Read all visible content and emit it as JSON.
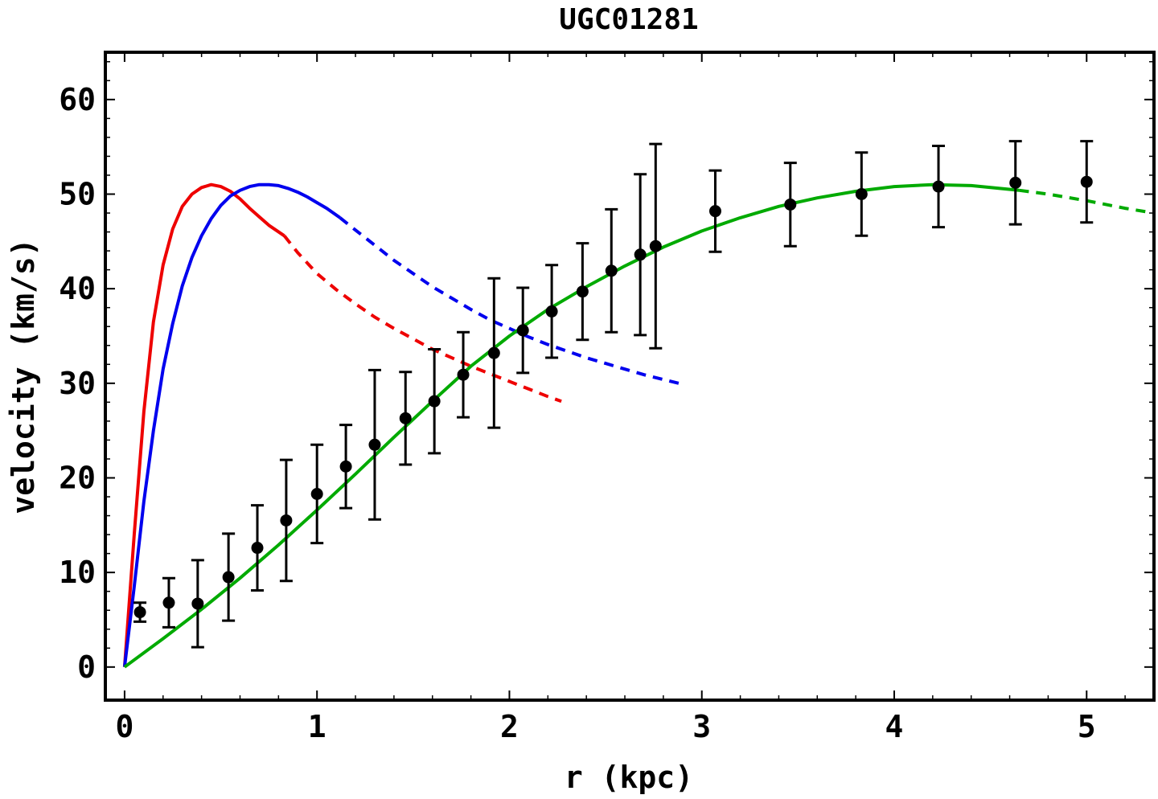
{
  "chart_data": {
    "type": "scatter",
    "title": "UGC01281",
    "xlabel": "r (kpc)",
    "ylabel": "velocity (km/s)",
    "xlim": [
      -0.1,
      5.35
    ],
    "ylim": [
      -3.5,
      65
    ],
    "xticks": [
      "0",
      "1",
      "2",
      "3",
      "4",
      "5"
    ],
    "yticks": [
      "0",
      "10",
      "20",
      "30",
      "40",
      "50",
      "60"
    ],
    "grid": false,
    "observed": {
      "name": "observed rotation curve",
      "color": "#000000",
      "points": [
        {
          "r": 0.08,
          "v": 5.8,
          "err": 1.0
        },
        {
          "r": 0.23,
          "v": 6.8,
          "err": 2.6
        },
        {
          "r": 0.38,
          "v": 6.7,
          "err": 4.6
        },
        {
          "r": 0.54,
          "v": 9.5,
          "err": 4.6
        },
        {
          "r": 0.69,
          "v": 12.6,
          "err": 4.5
        },
        {
          "r": 0.84,
          "v": 15.5,
          "err": 6.4
        },
        {
          "r": 1.0,
          "v": 18.3,
          "err": 5.2
        },
        {
          "r": 1.15,
          "v": 21.2,
          "err": 4.4
        },
        {
          "r": 1.3,
          "v": 23.5,
          "err": 7.9
        },
        {
          "r": 1.46,
          "v": 26.3,
          "err": 4.9
        },
        {
          "r": 1.61,
          "v": 28.1,
          "err": 5.5
        },
        {
          "r": 1.76,
          "v": 30.9,
          "err": 4.5
        },
        {
          "r": 1.92,
          "v": 33.2,
          "err": 7.9
        },
        {
          "r": 2.07,
          "v": 35.6,
          "err": 4.5
        },
        {
          "r": 2.22,
          "v": 37.6,
          "err": 4.9
        },
        {
          "r": 2.38,
          "v": 39.7,
          "err": 5.1
        },
        {
          "r": 2.53,
          "v": 41.9,
          "err": 6.5
        },
        {
          "r": 2.68,
          "v": 43.6,
          "err": 8.5
        },
        {
          "r": 2.76,
          "v": 44.5,
          "err": 10.8
        },
        {
          "r": 3.07,
          "v": 48.2,
          "err": 4.3
        },
        {
          "r": 3.46,
          "v": 48.9,
          "err": 4.4
        },
        {
          "r": 3.83,
          "v": 50.0,
          "err": 4.4
        },
        {
          "r": 4.23,
          "v": 50.8,
          "err": 4.3
        },
        {
          "r": 4.63,
          "v": 51.2,
          "err": 4.4
        },
        {
          "r": 5.0,
          "v": 51.3,
          "err": 4.3
        }
      ]
    },
    "series": [
      {
        "name": "model curve (red)",
        "color": "#ee0000",
        "style": "solid to dashed",
        "r_solid_end": 0.83,
        "r_end": 2.27,
        "points": [
          [
            0.0,
            0.0
          ],
          [
            0.05,
            14.0
          ],
          [
            0.1,
            27.0
          ],
          [
            0.15,
            36.5
          ],
          [
            0.2,
            42.5
          ],
          [
            0.25,
            46.3
          ],
          [
            0.3,
            48.7
          ],
          [
            0.35,
            50.0
          ],
          [
            0.4,
            50.7
          ],
          [
            0.45,
            51.0
          ],
          [
            0.5,
            50.8
          ],
          [
            0.55,
            50.3
          ],
          [
            0.6,
            49.5
          ],
          [
            0.65,
            48.5
          ],
          [
            0.7,
            47.6
          ],
          [
            0.75,
            46.7
          ],
          [
            0.83,
            45.6
          ],
          [
            0.9,
            43.8
          ],
          [
            1.0,
            41.6
          ],
          [
            1.1,
            39.9
          ],
          [
            1.2,
            38.4
          ],
          [
            1.3,
            37.0
          ],
          [
            1.4,
            35.8
          ],
          [
            1.5,
            34.7
          ],
          [
            1.6,
            33.6
          ],
          [
            1.7,
            32.7
          ],
          [
            1.8,
            31.8
          ],
          [
            1.9,
            31.0
          ],
          [
            2.0,
            30.2
          ],
          [
            2.1,
            29.4
          ],
          [
            2.2,
            28.6
          ],
          [
            2.27,
            28.1
          ]
        ]
      },
      {
        "name": "model curve (blue)",
        "color": "#0000ee",
        "style": "solid to dashed",
        "r_solid_end": 1.12,
        "r_end": 2.9,
        "points": [
          [
            0.0,
            0.0
          ],
          [
            0.05,
            8.5
          ],
          [
            0.1,
            17.5
          ],
          [
            0.15,
            25.0
          ],
          [
            0.2,
            31.5
          ],
          [
            0.25,
            36.3
          ],
          [
            0.3,
            40.3
          ],
          [
            0.35,
            43.3
          ],
          [
            0.4,
            45.6
          ],
          [
            0.45,
            47.4
          ],
          [
            0.5,
            48.8
          ],
          [
            0.55,
            49.8
          ],
          [
            0.6,
            50.4
          ],
          [
            0.65,
            50.8
          ],
          [
            0.7,
            51.0
          ],
          [
            0.75,
            51.0
          ],
          [
            0.8,
            50.9
          ],
          [
            0.85,
            50.6
          ],
          [
            0.9,
            50.2
          ],
          [
            0.95,
            49.7
          ],
          [
            1.0,
            49.1
          ],
          [
            1.05,
            48.5
          ],
          [
            1.12,
            47.5
          ],
          [
            1.2,
            46.2
          ],
          [
            1.3,
            44.6
          ],
          [
            1.4,
            43.0
          ],
          [
            1.5,
            41.6
          ],
          [
            1.6,
            40.2
          ],
          [
            1.7,
            39.0
          ],
          [
            1.8,
            37.8
          ],
          [
            1.9,
            36.7
          ],
          [
            2.0,
            35.8
          ],
          [
            2.1,
            34.9
          ],
          [
            2.2,
            34.1
          ],
          [
            2.3,
            33.4
          ],
          [
            2.4,
            32.7
          ],
          [
            2.5,
            32.1
          ],
          [
            2.6,
            31.5
          ],
          [
            2.7,
            30.9
          ],
          [
            2.8,
            30.4
          ],
          [
            2.9,
            29.9
          ]
        ]
      },
      {
        "name": "model curve (green)",
        "color": "#00aa00",
        "style": "solid to dashed",
        "r_solid_end": 4.65,
        "r_end": 5.35,
        "points": [
          [
            0.0,
            0.0
          ],
          [
            0.2,
            3.0
          ],
          [
            0.4,
            6.1
          ],
          [
            0.6,
            9.4
          ],
          [
            0.8,
            12.9
          ],
          [
            1.0,
            16.6
          ],
          [
            1.2,
            20.4
          ],
          [
            1.4,
            24.3
          ],
          [
            1.6,
            28.1
          ],
          [
            1.8,
            31.8
          ],
          [
            2.0,
            35.0
          ],
          [
            2.2,
            37.8
          ],
          [
            2.4,
            40.2
          ],
          [
            2.6,
            42.4
          ],
          [
            2.8,
            44.4
          ],
          [
            3.0,
            46.1
          ],
          [
            3.2,
            47.5
          ],
          [
            3.4,
            48.7
          ],
          [
            3.6,
            49.6
          ],
          [
            3.8,
            50.3
          ],
          [
            4.0,
            50.8
          ],
          [
            4.2,
            51.0
          ],
          [
            4.4,
            50.9
          ],
          [
            4.65,
            50.4
          ],
          [
            4.8,
            50.0
          ],
          [
            5.0,
            49.3
          ],
          [
            5.2,
            48.5
          ],
          [
            5.35,
            48.0
          ]
        ]
      }
    ]
  }
}
